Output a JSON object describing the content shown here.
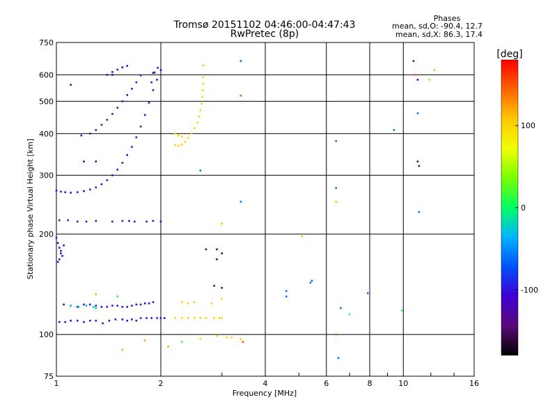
{
  "chart_data": {
    "type": "scatter",
    "title": "Tromsø 20151102 04:46:00-04:47:43",
    "subtitle": "RwPretec (8p)",
    "xlabel": "Frequency [MHz]",
    "ylabel": "Stationary phase Virtual Height [km]",
    "xscale": "log",
    "yscale": "log",
    "xlim": [
      1,
      16
    ],
    "ylim": [
      75,
      750
    ],
    "x_ticks": [
      1,
      2,
      4,
      6,
      8,
      10,
      16
    ],
    "x_tick_labels": [
      "1",
      "2",
      "4",
      "6",
      "8",
      "10",
      "16"
    ],
    "y_ticks": [
      75,
      100,
      200,
      300,
      400,
      500,
      600,
      750
    ],
    "y_tick_labels": [
      "75",
      "100",
      "200",
      "300",
      "400",
      "500",
      "600",
      "750"
    ],
    "grid": true,
    "phases_box": {
      "heading": "Phases",
      "line_o": "mean, sd,O: -90.4, 12.7",
      "line_x": "mean, sd,X: 86.3, 17.4"
    },
    "colorbar": {
      "label": "[deg]",
      "range": [
        -180,
        180
      ],
      "ticks": [
        100,
        0,
        -100
      ],
      "tick_labels": [
        "100",
        "0",
        "-100"
      ]
    },
    "series": [
      {
        "values": [
          [
            1.0,
            270
          ],
          [
            1.03,
            268
          ],
          [
            1.06,
            267
          ],
          [
            1.1,
            266
          ],
          [
            1.15,
            267
          ],
          [
            1.2,
            269
          ],
          [
            1.25,
            272
          ],
          [
            1.3,
            276
          ],
          [
            1.35,
            282
          ],
          [
            1.4,
            290
          ],
          [
            1.45,
            300
          ],
          [
            1.5,
            312
          ],
          [
            1.55,
            327
          ],
          [
            1.6,
            345
          ],
          [
            1.65,
            365
          ],
          [
            1.7,
            390
          ],
          [
            1.75,
            420
          ],
          [
            1.8,
            455
          ],
          [
            1.85,
            495
          ],
          [
            1.9,
            540
          ],
          [
            1.95,
            580
          ],
          [
            2.0,
            620
          ],
          [
            1.96,
            630
          ],
          [
            1.92,
            610
          ],
          [
            1.88,
            570
          ]
        ],
        "phase": -100
      },
      {
        "values": [
          [
            1.18,
            395
          ],
          [
            1.25,
            400
          ],
          [
            1.3,
            410
          ],
          [
            1.35,
            425
          ],
          [
            1.4,
            440
          ],
          [
            1.45,
            458
          ],
          [
            1.5,
            478
          ],
          [
            1.55,
            500
          ],
          [
            1.6,
            522
          ],
          [
            1.65,
            545
          ],
          [
            1.7,
            570
          ],
          [
            1.75,
            598
          ]
        ],
        "phase": -100
      },
      {
        "values": [
          [
            1.4,
            600
          ],
          [
            1.45,
            612
          ],
          [
            1.5,
            622
          ],
          [
            1.55,
            632
          ],
          [
            1.6,
            638
          ]
        ],
        "phase": -100
      },
      {
        "values": [
          [
            1.02,
            220
          ],
          [
            1.08,
            220
          ],
          [
            1.15,
            218
          ],
          [
            1.22,
            218
          ],
          [
            1.3,
            219
          ],
          [
            1.45,
            218
          ],
          [
            1.55,
            219
          ],
          [
            1.62,
            219
          ],
          [
            1.68,
            218
          ],
          [
            1.82,
            218
          ],
          [
            1.9,
            219
          ],
          [
            2.0,
            218
          ]
        ],
        "phase": -100
      },
      {
        "values": [
          [
            1.0,
            195
          ],
          [
            1.01,
            188
          ],
          [
            1.02,
            182
          ],
          [
            1.03,
            178
          ],
          [
            1.04,
            172
          ],
          [
            1.02,
            168
          ],
          [
            1.01,
            165
          ],
          [
            1.03,
            175
          ],
          [
            1.05,
            185
          ]
        ],
        "phase": -100
      },
      {
        "values": [
          [
            1.02,
            109
          ],
          [
            1.06,
            109
          ],
          [
            1.1,
            110
          ],
          [
            1.15,
            110
          ],
          [
            1.2,
            109
          ],
          [
            1.25,
            110
          ],
          [
            1.3,
            110
          ],
          [
            1.36,
            108
          ],
          [
            1.42,
            110
          ],
          [
            1.48,
            111
          ],
          [
            1.55,
            111
          ],
          [
            1.6,
            110
          ],
          [
            1.65,
            111
          ],
          [
            1.7,
            110
          ],
          [
            1.75,
            112
          ],
          [
            1.82,
            112
          ],
          [
            1.88,
            112
          ],
          [
            1.95,
            112
          ],
          [
            2.0,
            112
          ],
          [
            2.05,
            112
          ]
        ],
        "phase": -100
      },
      {
        "values": [
          [
            1.05,
            123
          ],
          [
            1.1,
            122
          ],
          [
            1.15,
            121
          ],
          [
            1.2,
            123
          ],
          [
            1.25,
            123
          ],
          [
            1.3,
            122
          ],
          [
            1.35,
            121
          ],
          [
            1.4,
            121
          ],
          [
            1.45,
            122
          ],
          [
            1.5,
            122
          ],
          [
            1.55,
            121
          ],
          [
            1.6,
            121
          ],
          [
            1.65,
            122
          ],
          [
            1.7,
            123
          ],
          [
            1.75,
            123
          ],
          [
            1.8,
            124
          ],
          [
            1.85,
            124
          ],
          [
            1.9,
            125
          ]
        ],
        "phase": -100
      },
      {
        "values": [
          [
            1.1,
            122
          ],
          [
            1.16,
            121
          ],
          [
            1.22,
            122
          ],
          [
            1.28,
            121
          ],
          [
            1.3,
            120
          ]
        ],
        "phase": -30
      },
      {
        "values": [
          [
            2.2,
            370
          ],
          [
            2.25,
            368
          ],
          [
            2.3,
            371
          ],
          [
            2.35,
            378
          ],
          [
            2.4,
            388
          ],
          [
            2.45,
            400
          ],
          [
            2.5,
            415
          ],
          [
            2.55,
            432
          ],
          [
            2.58,
            450
          ],
          [
            2.6,
            470
          ],
          [
            2.62,
            492
          ],
          [
            2.63,
            515
          ],
          [
            2.64,
            540
          ],
          [
            2.65,
            565
          ],
          [
            2.65,
            590
          ],
          [
            2.2,
            400
          ],
          [
            2.25,
            395
          ],
          [
            2.3,
            392
          ]
        ],
        "phase": 100
      },
      {
        "values": [
          [
            2.2,
            112
          ],
          [
            2.3,
            112
          ],
          [
            2.4,
            112
          ],
          [
            2.5,
            112
          ],
          [
            2.6,
            112
          ],
          [
            2.7,
            112
          ],
          [
            2.85,
            112
          ],
          [
            2.95,
            112
          ],
          [
            3.0,
            112
          ],
          [
            2.3,
            125
          ],
          [
            2.4,
            124
          ],
          [
            2.5,
            125
          ],
          [
            2.8,
            124
          ],
          [
            3.0,
            128
          ],
          [
            2.6,
            97
          ],
          [
            2.9,
            99
          ],
          [
            3.1,
            98
          ],
          [
            3.2,
            98
          ],
          [
            3.4,
            97
          ]
        ],
        "phase": 100
      },
      {
        "values": [
          [
            1.55,
            90
          ],
          [
            1.8,
            96
          ],
          [
            2.1,
            92
          ],
          [
            1.3,
            132
          ]
        ],
        "phase": 120
      },
      {
        "values": [
          [
            1.1,
            560
          ],
          [
            1.2,
            330
          ],
          [
            1.3,
            330
          ],
          [
            1.45,
            600
          ],
          [
            1.9,
            608
          ],
          [
            2.7,
            180
          ],
          [
            2.9,
            180
          ],
          [
            3.0,
            175
          ],
          [
            2.9,
            168
          ],
          [
            2.85,
            140
          ],
          [
            3.0,
            138
          ],
          [
            10.7,
            660
          ],
          [
            11.0,
            330
          ],
          [
            11.1,
            320
          ],
          [
            11.0,
            580
          ]
        ],
        "phase": -150
      },
      {
        "values": [
          [
            3.4,
            520
          ],
          [
            6.4,
            100
          ],
          [
            3.45,
            95
          ],
          [
            10.8,
            600
          ]
        ],
        "phase": 150
      },
      {
        "values": [
          [
            3.4,
            660
          ],
          [
            2.6,
            310
          ],
          [
            3.4,
            250
          ],
          [
            6.4,
            380
          ],
          [
            6.4,
            275
          ],
          [
            6.6,
            120
          ],
          [
            4.6,
            135
          ],
          [
            4.6,
            130
          ],
          [
            5.4,
            143
          ],
          [
            5.45,
            145
          ],
          [
            7.9,
            133
          ],
          [
            9.4,
            410
          ],
          [
            11.1,
            233
          ],
          [
            11.0,
            460
          ],
          [
            6.5,
            85
          ]
        ],
        "phase": -60
      },
      {
        "values": [
          [
            5.1,
            197
          ],
          [
            3.0,
            215
          ],
          [
            6.4,
            250
          ],
          [
            12.3,
            620
          ],
          [
            11.9,
            580
          ],
          [
            2.65,
            640
          ]
        ],
        "phase": 40
      },
      {
        "values": [
          [
            9.9,
            118
          ],
          [
            7.0,
            115
          ],
          [
            1.5,
            130
          ],
          [
            2.3,
            95
          ]
        ],
        "phase": 10
      }
    ]
  }
}
